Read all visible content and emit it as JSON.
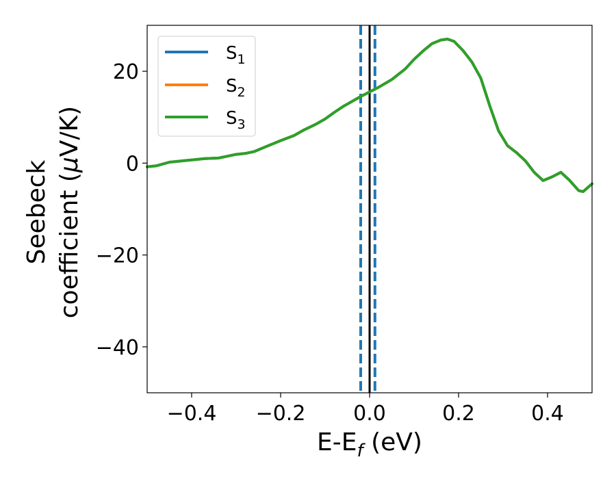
{
  "chart_data": {
    "type": "line",
    "title": "",
    "xlabel": {
      "base": "E-E",
      "sub": "f",
      "unit": " (eV)"
    },
    "ylabel": {
      "line1": "Seebeck",
      "line2_a": "coefficient  (",
      "mu": "μ",
      "line2_b": "V/K)"
    },
    "xlim": [
      -0.5,
      0.5
    ],
    "ylim": [
      -50,
      30
    ],
    "xticks": [
      -0.4,
      -0.2,
      0.0,
      0.2,
      0.4
    ],
    "xtick_labels": [
      "−0.4",
      "−0.2",
      "0.0",
      "0.2",
      "0.4"
    ],
    "yticks": [
      -40,
      -20,
      0,
      20
    ],
    "ytick_labels": [
      "−40",
      "−20",
      "0",
      "20"
    ],
    "grid": false,
    "legend_position": "upper-left",
    "colors": {
      "s1": "#1f77b4",
      "s2": "#ff7f0e",
      "s3": "#2ca02c",
      "fermi": "#000000",
      "band": "#1f77b4"
    },
    "vertical_lines": [
      {
        "x": 0.0,
        "style": "solid",
        "color": "#000000"
      },
      {
        "x": -0.02,
        "style": "dashed",
        "color": "#1f77b4"
      },
      {
        "x": 0.012,
        "style": "dashed",
        "color": "#1f77b4"
      }
    ],
    "series": [
      {
        "name": "S",
        "sub": "1",
        "color": "#1f77b4",
        "x": [
          -0.5,
          -0.48,
          -0.45,
          -0.42,
          -0.4,
          -0.37,
          -0.34,
          -0.32,
          -0.3,
          -0.28,
          -0.26,
          -0.24,
          -0.2,
          -0.17,
          -0.15,
          -0.12,
          -0.1,
          -0.08,
          -0.06,
          -0.04,
          -0.02,
          0.0,
          0.02,
          0.05,
          0.08,
          0.1,
          0.12,
          0.14,
          0.16,
          0.175,
          0.19,
          0.21,
          0.23,
          0.25,
          0.27,
          0.29,
          0.31,
          0.33,
          0.35,
          0.37,
          0.39,
          0.41,
          0.43,
          0.45,
          0.47,
          0.48,
          0.5
        ],
        "y": [
          -0.8,
          -0.6,
          0.2,
          0.5,
          0.7,
          1.0,
          1.1,
          1.5,
          1.9,
          2.1,
          2.5,
          3.3,
          4.9,
          6.0,
          7.1,
          8.5,
          9.6,
          11.0,
          12.3,
          13.4,
          14.5,
          15.5,
          16.5,
          18.2,
          20.5,
          22.6,
          24.4,
          26.0,
          26.8,
          27.0,
          26.5,
          24.5,
          22.0,
          18.5,
          12.5,
          7.0,
          3.8,
          2.3,
          0.5,
          -2.0,
          -3.8,
          -3.0,
          -2.0,
          -3.8,
          -6.0,
          -6.2,
          -4.5
        ]
      },
      {
        "name": "S",
        "sub": "2",
        "color": "#ff7f0e",
        "x": [
          -0.5,
          -0.48,
          -0.45,
          -0.42,
          -0.4,
          -0.37,
          -0.34,
          -0.32,
          -0.3,
          -0.28,
          -0.26,
          -0.24,
          -0.2,
          -0.17,
          -0.15,
          -0.12,
          -0.1,
          -0.08,
          -0.06,
          -0.04,
          -0.02,
          0.0,
          0.02,
          0.05,
          0.08,
          0.1,
          0.12,
          0.14,
          0.16,
          0.175,
          0.19,
          0.21,
          0.23,
          0.25,
          0.27,
          0.29,
          0.31,
          0.33,
          0.35,
          0.37,
          0.39,
          0.41,
          0.43,
          0.45,
          0.47,
          0.48,
          0.5
        ],
        "y": [
          -0.8,
          -0.6,
          0.2,
          0.5,
          0.7,
          1.0,
          1.1,
          1.5,
          1.9,
          2.1,
          2.5,
          3.3,
          4.9,
          6.0,
          7.1,
          8.5,
          9.6,
          11.0,
          12.3,
          13.4,
          14.5,
          15.5,
          16.5,
          18.2,
          20.5,
          22.6,
          24.4,
          26.0,
          26.8,
          27.0,
          26.5,
          24.5,
          22.0,
          18.5,
          12.5,
          7.0,
          3.8,
          2.3,
          0.5,
          -2.0,
          -3.8,
          -3.0,
          -2.0,
          -3.8,
          -6.0,
          -6.2,
          -4.5
        ]
      },
      {
        "name": "S",
        "sub": "3",
        "color": "#2ca02c",
        "x": [
          -0.5,
          -0.48,
          -0.45,
          -0.42,
          -0.4,
          -0.37,
          -0.34,
          -0.32,
          -0.3,
          -0.28,
          -0.26,
          -0.24,
          -0.2,
          -0.17,
          -0.15,
          -0.12,
          -0.1,
          -0.08,
          -0.06,
          -0.04,
          -0.02,
          0.0,
          0.02,
          0.05,
          0.08,
          0.1,
          0.12,
          0.14,
          0.16,
          0.175,
          0.19,
          0.21,
          0.23,
          0.25,
          0.27,
          0.29,
          0.31,
          0.33,
          0.35,
          0.37,
          0.39,
          0.41,
          0.43,
          0.45,
          0.47,
          0.48,
          0.5
        ],
        "y": [
          -0.8,
          -0.6,
          0.2,
          0.5,
          0.7,
          1.0,
          1.1,
          1.5,
          1.9,
          2.1,
          2.5,
          3.3,
          4.9,
          6.0,
          7.1,
          8.5,
          9.6,
          11.0,
          12.3,
          13.4,
          14.5,
          15.5,
          16.5,
          18.2,
          20.5,
          22.6,
          24.4,
          26.0,
          26.8,
          27.0,
          26.5,
          24.5,
          22.0,
          18.5,
          12.5,
          7.0,
          3.8,
          2.3,
          0.5,
          -2.0,
          -3.8,
          -3.0,
          -2.0,
          -3.8,
          -6.0,
          -6.2,
          -4.5
        ]
      }
    ]
  }
}
